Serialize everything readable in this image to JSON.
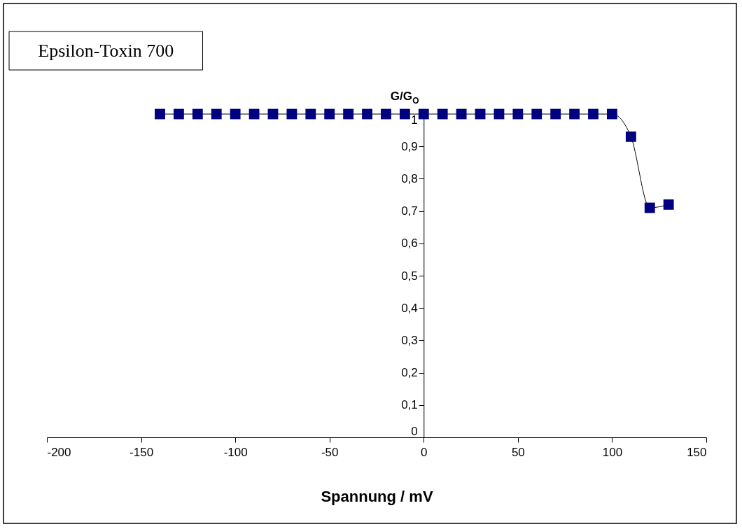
{
  "chart_data": {
    "type": "line",
    "title": "Epsilon-Toxin 700",
    "xlabel": "Spannung / mV",
    "ylabel": "G/G$_{O}$",
    "x": [
      -140,
      -130,
      -120,
      -110,
      -100,
      -90,
      -80,
      -70,
      -60,
      -50,
      -40,
      -30,
      -20,
      -10,
      0,
      10,
      20,
      30,
      40,
      50,
      60,
      70,
      80,
      90,
      100,
      110,
      120,
      130
    ],
    "series": [
      {
        "color": "#000080",
        "values": [
          1,
          1,
          1,
          1,
          1,
          1,
          1,
          1,
          1,
          1,
          1,
          1,
          1,
          1,
          1,
          1,
          1,
          1,
          1,
          1,
          1,
          1,
          1,
          1,
          1,
          0.93,
          0.71,
          0.72
        ]
      }
    ],
    "xlim": [
      -200,
      150
    ],
    "xticks": [
      -200,
      -150,
      -100,
      -50,
      0,
      50,
      100,
      150
    ],
    "ylim": [
      0,
      1
    ],
    "yticks": [
      0,
      {
        "value": 0.1,
        "label": "0,1"
      },
      {
        "value": 0.2,
        "label": "0,2"
      },
      {
        "value": 0.3,
        "label": "0,3"
      },
      {
        "value": 0.4,
        "label": "0,4"
      },
      {
        "value": 0.5,
        "label": "0,5"
      },
      {
        "value": 0.6,
        "label": "0,6"
      },
      {
        "value": 0.7,
        "label": "0,7"
      },
      {
        "value": 0.8,
        "label": "0,8"
      },
      {
        "value": 0.9,
        "label": "0,9"
      },
      1
    ],
    "marker": "square",
    "line_style": "solid",
    "grid": false
  }
}
